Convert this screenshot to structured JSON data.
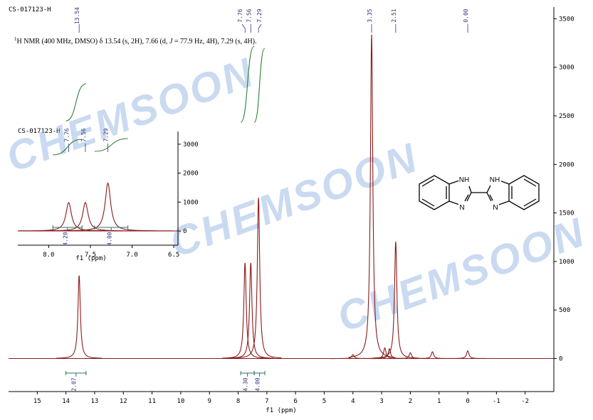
{
  "chart_data": {
    "type": "spectrum",
    "title": "CS-017123-H",
    "description": [
      "1",
      "H NMR (400 MHz, DMSO) δ 13.54 (s, 2H), 7.66 (d, ",
      "J",
      " = 77.9 Hz, 4H), 7.29 (s, 4H)."
    ],
    "x_label": "f1 (ppm)",
    "color": "#8b1a1a",
    "integral_color": "#2e7d32",
    "xlim": [
      16,
      -3
    ],
    "ylim": [
      -340,
      3620
    ],
    "xticks": [
      15,
      14,
      13,
      12,
      11,
      10,
      9,
      8,
      7,
      6,
      5,
      4,
      3,
      2,
      1,
      0,
      -1,
      -2
    ],
    "yticks": [
      0,
      500,
      1000,
      1500,
      2000,
      2500,
      3000,
      3500
    ],
    "x": [
      13.54,
      7.76,
      7.56,
      7.29,
      4.0,
      3.35,
      2.89,
      2.73,
      2.51,
      2.0,
      1.23,
      0.0
    ],
    "values": [
      855,
      985,
      985,
      1657,
      40,
      3336,
      110,
      100,
      1204,
      60,
      70,
      80
    ],
    "peak_labels": [
      13.54,
      7.76,
      7.56,
      7.29,
      3.35,
      2.51,
      {
        "value": 0,
        "label": "0.00"
      }
    ],
    "integrals": [
      {
        "value": 2.07,
        "from": 14.0,
        "to": 13.3
      },
      {
        "value": 4.3,
        "label": "4.30",
        "from": 7.91,
        "to": 7.44
      },
      {
        "value": 4,
        "label": "4.00",
        "from": 7.44,
        "to": 7.07
      }
    ],
    "inset": {
      "title": "CS-017123-H",
      "x_label": "f1 (ppm)",
      "xlim": [
        8.37,
        6.45
      ],
      "ylim": [
        -490,
        3440
      ],
      "xticks": [
        {
          "value": 8,
          "label": "8.0"
        },
        7.5,
        {
          "value": 7,
          "label": "7.0"
        },
        6.5
      ],
      "yticks": [
        0,
        1000,
        2000,
        3000
      ],
      "peak_labels": [
        7.76,
        7.56,
        7.29
      ],
      "integrals": [
        {
          "value": 4.2,
          "label": "4.20",
          "from": 7.95,
          "to": 7.6
        },
        {
          "value": 4,
          "label": "4.00",
          "from": 7.45,
          "to": 7.05
        }
      ]
    },
    "watermarks": [
      "CHEMSOON",
      "CHEMSOON",
      "CHEMSOON"
    ],
    "structure_labels": [
      "NH",
      "N",
      "NH",
      "N"
    ]
  }
}
